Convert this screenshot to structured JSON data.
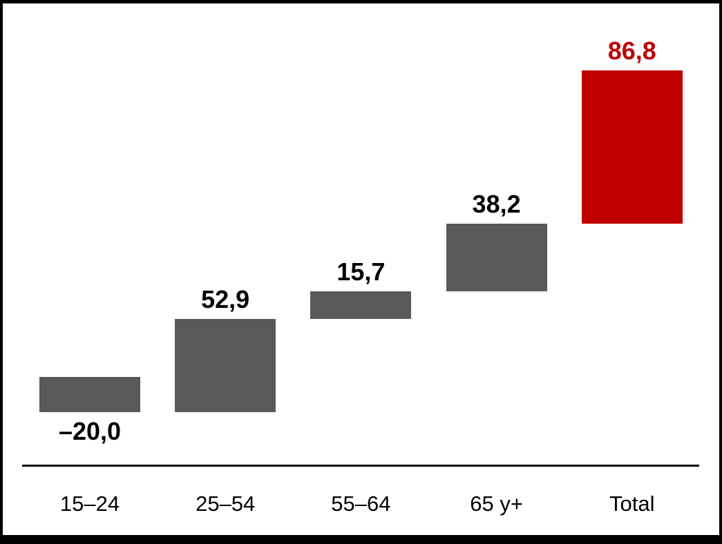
{
  "page": {
    "background": "#ffffff",
    "frame_border_color": "#000000"
  },
  "chart_data": {
    "type": "bar",
    "subtype": "waterfall",
    "title": "",
    "xlabel": "",
    "ylabel": "",
    "categories": [
      "15–24",
      "25–54",
      "55–64",
      "65 y+",
      "Total"
    ],
    "values": [
      -20.0,
      52.9,
      15.7,
      38.2,
      86.8
    ],
    "value_labels": [
      "–20,0",
      "52,9",
      "15,7",
      "38,2",
      "86,8"
    ],
    "decimal_separator": ",",
    "bars": [
      {
        "category": "15–24",
        "value": -20.0,
        "label": "–20,0",
        "role": "change",
        "bar_color": "#595959",
        "label_color": "#000000"
      },
      {
        "category": "25–54",
        "value": 52.9,
        "label": "52,9",
        "role": "change",
        "bar_color": "#595959",
        "label_color": "#000000"
      },
      {
        "category": "55–64",
        "value": 15.7,
        "label": "15,7",
        "role": "change",
        "bar_color": "#595959",
        "label_color": "#000000"
      },
      {
        "category": "65 y+",
        "value": 38.2,
        "label": "38,2",
        "role": "change",
        "bar_color": "#595959",
        "label_color": "#000000"
      },
      {
        "category": "Total",
        "value": 86.8,
        "label": "86,8",
        "role": "total",
        "bar_color": "#C00000",
        "label_color": "#C00000"
      }
    ],
    "colors": {
      "change_bar": "#595959",
      "total_bar": "#C00000",
      "axis_line": "#000000",
      "category_text": "#000000"
    },
    "axis": {
      "x_axis_line_shown": true,
      "y_axis_shown": false,
      "gridlines": false,
      "tick_labels_shown": false
    },
    "legend": {
      "shown": false
    },
    "layout_hints": {
      "waterfall_cumulative": true,
      "total_bar_stacked_above_last_bar": true,
      "negative_value_label_below_bar": true,
      "positive_value_label_above_bar": true
    }
  }
}
